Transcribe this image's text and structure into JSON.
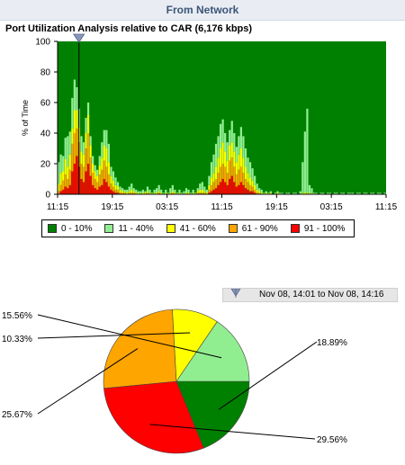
{
  "header": {
    "title": "From Network"
  },
  "chart_data": [
    {
      "type": "bar",
      "stacked": true,
      "title": "Port Utilization Analysis relative to CAR (6,176 kbps)",
      "ylabel": "% of Time",
      "xlabel": "",
      "ylim": [
        0,
        100
      ],
      "y_ticks": [
        "0",
        "20",
        "40",
        "60",
        "80",
        "100"
      ],
      "x_ticks": [
        "11:15",
        "19:15",
        "03:15",
        "11:15",
        "19:15",
        "03:15",
        "11:15"
      ],
      "legend": [
        {
          "label": "0 - 10%",
          "color": "#008000"
        },
        {
          "label": "11 - 40%",
          "color": "#90ee90"
        },
        {
          "label": "41 - 60%",
          "color": "#ffff00"
        },
        {
          "label": "61 - 90%",
          "color": "#ffa500"
        },
        {
          "label": "91 - 100%",
          "color": "#ff0000"
        }
      ],
      "legend_placement": "bottom",
      "grid": false,
      "cursor_position": 0.065,
      "bar_count": 144,
      "series_note": "non-background stacks in order: 91-100, 61-90, 41-60, 11-40; remainder is 0-10",
      "stacks": [
        [
          0,
          2,
          5,
          14
        ],
        [
          2,
          4,
          8,
          12
        ],
        [
          3,
          6,
          6,
          10
        ],
        [
          5,
          8,
          10,
          14
        ],
        [
          4,
          6,
          8,
          20
        ],
        [
          6,
          10,
          10,
          15
        ],
        [
          15,
          18,
          10,
          20
        ],
        [
          20,
          20,
          15,
          20
        ],
        [
          25,
          18,
          12,
          15
        ],
        [
          18,
          16,
          10,
          12
        ],
        [
          10,
          10,
          8,
          10
        ],
        [
          8,
          10,
          8,
          8
        ],
        [
          15,
          15,
          10,
          10
        ],
        [
          20,
          20,
          12,
          8
        ],
        [
          12,
          12,
          8,
          6
        ],
        [
          6,
          8,
          6,
          5
        ],
        [
          4,
          6,
          5,
          4
        ],
        [
          3,
          5,
          4,
          4
        ],
        [
          5,
          8,
          6,
          6
        ],
        [
          6,
          10,
          8,
          10
        ],
        [
          10,
          12,
          10,
          10
        ],
        [
          8,
          10,
          12,
          12
        ],
        [
          5,
          8,
          8,
          12
        ],
        [
          3,
          4,
          5,
          6
        ],
        [
          2,
          3,
          4,
          6
        ],
        [
          1,
          2,
          3,
          5
        ],
        [
          1,
          2,
          2,
          3
        ],
        [
          0,
          1,
          2,
          2
        ],
        [
          0,
          1,
          1,
          2
        ],
        [
          0,
          1,
          1,
          1
        ],
        [
          0,
          0,
          1,
          2
        ],
        [
          0,
          1,
          1,
          3
        ],
        [
          0,
          1,
          2,
          4
        ],
        [
          0,
          1,
          1,
          2
        ],
        [
          0,
          0,
          1,
          2
        ],
        [
          0,
          0,
          1,
          1
        ],
        [
          0,
          0,
          0,
          2
        ],
        [
          0,
          0,
          1,
          2
        ],
        [
          0,
          0,
          1,
          1
        ],
        [
          0,
          1,
          1,
          3
        ],
        [
          0,
          0,
          1,
          2
        ],
        [
          0,
          0,
          0,
          1
        ],
        [
          0,
          0,
          1,
          2
        ],
        [
          0,
          0,
          1,
          3
        ],
        [
          0,
          1,
          1,
          4
        ],
        [
          0,
          0,
          1,
          2
        ],
        [
          0,
          0,
          0,
          1
        ],
        [
          0,
          0,
          1,
          2
        ],
        [
          0,
          0,
          0,
          1
        ],
        [
          0,
          0,
          1,
          3
        ],
        [
          0,
          1,
          1,
          4
        ],
        [
          0,
          0,
          1,
          2
        ],
        [
          0,
          0,
          0,
          1
        ],
        [
          0,
          0,
          1,
          2
        ],
        [
          0,
          0,
          0,
          1
        ],
        [
          0,
          0,
          0,
          2
        ],
        [
          0,
          0,
          1,
          3
        ],
        [
          0,
          0,
          1,
          2
        ],
        [
          0,
          0,
          0,
          1
        ],
        [
          0,
          0,
          1,
          2
        ],
        [
          0,
          0,
          0,
          1
        ],
        [
          0,
          1,
          1,
          2
        ],
        [
          0,
          1,
          2,
          4
        ],
        [
          0,
          1,
          2,
          5
        ],
        [
          0,
          1,
          1,
          3
        ],
        [
          0,
          0,
          1,
          2
        ],
        [
          1,
          2,
          3,
          6
        ],
        [
          2,
          4,
          5,
          10
        ],
        [
          3,
          5,
          6,
          12
        ],
        [
          4,
          6,
          8,
          15
        ],
        [
          6,
          8,
          10,
          14
        ],
        [
          8,
          10,
          12,
          16
        ],
        [
          10,
          10,
          14,
          15
        ],
        [
          8,
          10,
          10,
          12
        ],
        [
          6,
          8,
          8,
          12
        ],
        [
          10,
          12,
          10,
          10
        ],
        [
          12,
          12,
          10,
          14
        ],
        [
          8,
          10,
          10,
          12
        ],
        [
          5,
          8,
          8,
          10
        ],
        [
          6,
          10,
          10,
          12
        ],
        [
          8,
          10,
          12,
          14
        ],
        [
          6,
          8,
          10,
          14
        ],
        [
          4,
          6,
          8,
          12
        ],
        [
          3,
          5,
          6,
          10
        ],
        [
          2,
          4,
          5,
          10
        ],
        [
          2,
          3,
          4,
          8
        ],
        [
          1,
          2,
          3,
          6
        ],
        [
          0,
          1,
          2,
          4
        ],
        [
          0,
          1,
          1,
          2
        ],
        [
          0,
          0,
          1,
          2
        ],
        [
          0,
          0,
          0,
          1
        ],
        [
          0,
          0,
          1,
          1
        ],
        [
          0,
          0,
          0,
          1
        ],
        [
          0,
          0,
          1,
          1
        ],
        [
          0,
          0,
          0,
          0
        ],
        [
          0,
          0,
          0,
          1
        ],
        [
          0,
          0,
          1,
          1
        ],
        [
          0,
          0,
          0,
          1
        ],
        [
          0,
          0,
          0,
          1
        ],
        [
          0,
          0,
          0,
          0
        ],
        [
          0,
          0,
          0,
          1
        ],
        [
          0,
          0,
          0,
          1
        ],
        [
          0,
          0,
          0,
          0
        ],
        [
          0,
          0,
          0,
          1
        ],
        [
          0,
          0,
          0,
          1
        ],
        [
          0,
          0,
          0,
          0
        ],
        [
          0,
          0,
          0,
          2
        ],
        [
          0,
          0,
          1,
          20
        ],
        [
          0,
          0,
          1,
          40
        ],
        [
          0,
          0,
          1,
          55
        ],
        [
          0,
          0,
          0,
          6
        ],
        [
          0,
          0,
          1,
          3
        ],
        [
          0,
          0,
          0,
          1
        ],
        [
          0,
          0,
          0,
          1
        ],
        [
          0,
          0,
          0,
          0
        ],
        [
          0,
          0,
          0,
          1
        ],
        [
          0,
          0,
          0,
          1
        ],
        [
          0,
          0,
          0,
          0
        ],
        [
          0,
          0,
          0,
          1
        ],
        [
          0,
          0,
          0,
          1
        ],
        [
          0,
          0,
          0,
          0
        ],
        [
          0,
          0,
          0,
          1
        ],
        [
          0,
          0,
          0,
          1
        ],
        [
          0,
          0,
          0,
          0
        ],
        [
          0,
          0,
          0,
          1
        ],
        [
          0,
          0,
          0,
          1
        ],
        [
          0,
          0,
          0,
          0
        ],
        [
          0,
          0,
          0,
          1
        ],
        [
          0,
          0,
          0,
          1
        ],
        [
          0,
          0,
          0,
          1
        ],
        [
          0,
          0,
          0,
          0
        ],
        [
          0,
          0,
          0,
          1
        ],
        [
          0,
          0,
          0,
          1
        ],
        [
          0,
          0,
          0,
          0
        ],
        [
          0,
          0,
          0,
          1
        ],
        [
          0,
          0,
          0,
          1
        ],
        [
          0,
          0,
          0,
          0
        ],
        [
          0,
          0,
          0,
          1
        ],
        [
          0,
          0,
          0,
          1
        ],
        [
          0,
          0,
          0,
          0
        ],
        [
          0,
          0,
          0,
          1
        ],
        [
          0,
          0,
          0,
          1
        ],
        [
          0,
          0,
          0,
          0
        ],
        [
          0,
          0,
          0,
          1
        ]
      ]
    },
    {
      "type": "pie",
      "range_label": "Nov 08, 14:01 to Nov 08, 14:16",
      "slices": [
        {
          "label": "18.89%",
          "value": 18.89,
          "color": "#008000"
        },
        {
          "label": "29.56%",
          "value": 29.56,
          "color": "#ff0000"
        },
        {
          "label": "25.67%",
          "value": 25.67,
          "color": "#ffa500"
        },
        {
          "label": "10.33%",
          "value": 10.33,
          "color": "#ffff00"
        },
        {
          "label": "15.56%",
          "value": 15.56,
          "color": "#90ee90"
        }
      ]
    }
  ]
}
